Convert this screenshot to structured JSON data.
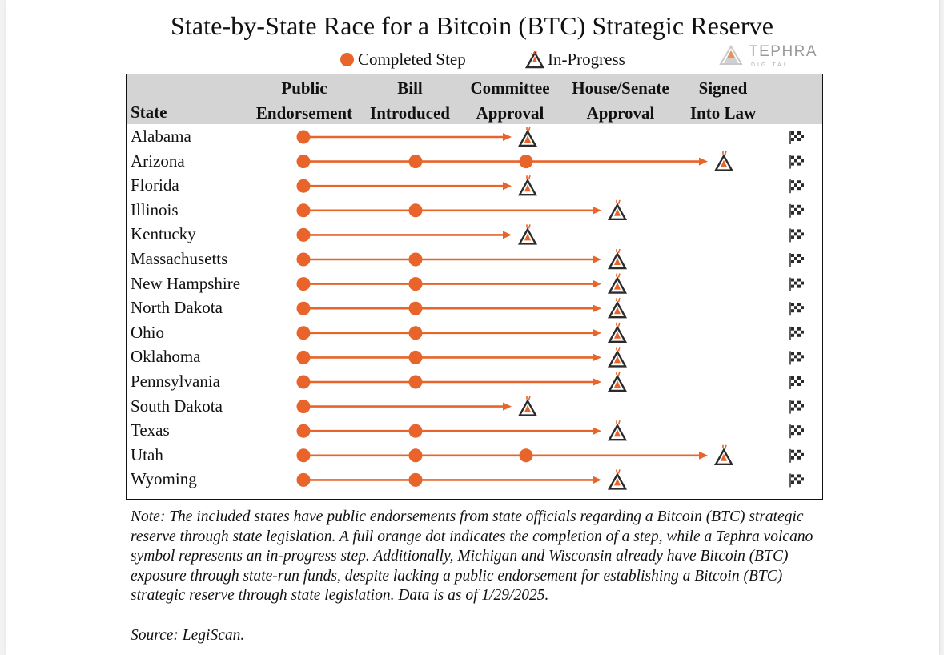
{
  "title": "State-by-State Race for a Bitcoin (BTC) Strategic Reserve",
  "legend": {
    "completed": "Completed Step",
    "in_progress": "In-Progress"
  },
  "brand": {
    "name": "TEPHRA",
    "sub": "DIGITAL"
  },
  "colors": {
    "accent": "#e8642a",
    "header_bg": "#d4d4d4",
    "icon_dark": "#2b2b2b"
  },
  "chart_data": {
    "type": "table",
    "columns": {
      "state": "State",
      "steps": [
        {
          "line1": "Public",
          "line2": "Endorsement"
        },
        {
          "line1": "Bill",
          "line2": "Introduced"
        },
        {
          "line1": "Committee",
          "line2": "Approval"
        },
        {
          "line1": "House/Senate",
          "line2": "Approval"
        },
        {
          "line1": "Signed",
          "line2": "Into Law"
        }
      ]
    },
    "rows": [
      {
        "state": "Alabama",
        "completed": 1,
        "in_progress_step": 2
      },
      {
        "state": "Arizona",
        "completed": 3,
        "in_progress_step": 4
      },
      {
        "state": "Florida",
        "completed": 1,
        "in_progress_step": 2
      },
      {
        "state": "Illinois",
        "completed": 2,
        "in_progress_step": 3
      },
      {
        "state": "Kentucky",
        "completed": 1,
        "in_progress_step": 2
      },
      {
        "state": "Massachusetts",
        "completed": 2,
        "in_progress_step": 3
      },
      {
        "state": "New Hampshire",
        "completed": 2,
        "in_progress_step": 3
      },
      {
        "state": "North Dakota",
        "completed": 2,
        "in_progress_step": 3
      },
      {
        "state": "Ohio",
        "completed": 2,
        "in_progress_step": 3
      },
      {
        "state": "Oklahoma",
        "completed": 2,
        "in_progress_step": 3
      },
      {
        "state": "Pennsylvania",
        "completed": 2,
        "in_progress_step": 3
      },
      {
        "state": "South Dakota",
        "completed": 1,
        "in_progress_step": 2
      },
      {
        "state": "Texas",
        "completed": 2,
        "in_progress_step": 3
      },
      {
        "state": "Utah",
        "completed": 3,
        "in_progress_step": 4
      },
      {
        "state": "Wyoming",
        "completed": 2,
        "in_progress_step": 3
      }
    ]
  },
  "note": "Note: The included states have public endorsements from state officials regarding a Bitcoin (BTC) strategic reserve through state legislation. A full orange dot indicates the completion of a step, while a Tephra volcano symbol represents an in-progress step. Additionally, Michigan and Wisconsin already have Bitcoin (BTC) exposure through state-run funds, despite lacking a public endorsement for establishing a Bitcoin (BTC) strategic reserve through state legislation. Data is as of 1/29/2025.",
  "source": "Source: LegiScan."
}
